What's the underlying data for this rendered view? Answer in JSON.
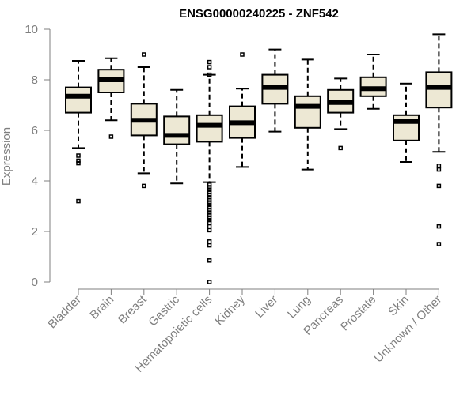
{
  "chart_data": {
    "type": "boxplot",
    "title": "ENSG00000240225 - ZNF542",
    "xlabel": "",
    "ylabel": "Expression",
    "ylim": [
      0,
      10
    ],
    "yticks": [
      0,
      2,
      4,
      6,
      8,
      10
    ],
    "categories": [
      "Bladder",
      "Brain",
      "Breast",
      "Gastric",
      "Hematopoietic cells",
      "Kidney",
      "Liver",
      "Lung",
      "Pancreas",
      "Prostate",
      "Skin",
      "Unknown / Other"
    ],
    "boxes": [
      {
        "category": "Bladder",
        "whisker_low": 5.3,
        "q1": 6.7,
        "median": 7.35,
        "q3": 7.7,
        "whisker_high": 8.75,
        "outliers": [
          5.0,
          4.8,
          4.7,
          3.2
        ]
      },
      {
        "category": "Brain",
        "whisker_low": 6.4,
        "q1": 7.5,
        "median": 8.0,
        "q3": 8.4,
        "whisker_high": 8.85,
        "outliers": [
          5.75
        ]
      },
      {
        "category": "Breast",
        "whisker_low": 4.3,
        "q1": 5.8,
        "median": 6.4,
        "q3": 7.05,
        "whisker_high": 8.5,
        "outliers": [
          9.0,
          3.8
        ]
      },
      {
        "category": "Gastric",
        "whisker_low": 3.9,
        "q1": 5.45,
        "median": 5.8,
        "q3": 6.55,
        "whisker_high": 7.6,
        "outliers": []
      },
      {
        "category": "Hematopoietic cells",
        "whisker_low": 3.95,
        "q1": 5.55,
        "median": 6.2,
        "q3": 6.6,
        "whisker_high": 8.2,
        "outliers": [
          8.7,
          8.5,
          8.2,
          3.85,
          3.75,
          3.65,
          3.55,
          3.45,
          3.35,
          3.25,
          3.15,
          3.05,
          2.95,
          2.85,
          2.75,
          2.65,
          2.55,
          2.45,
          2.35,
          2.2,
          2.05,
          1.6,
          1.45,
          0.85,
          0.0
        ]
      },
      {
        "category": "Kidney",
        "whisker_low": 4.55,
        "q1": 5.7,
        "median": 6.3,
        "q3": 6.95,
        "whisker_high": 7.65,
        "outliers": [
          9.0
        ]
      },
      {
        "category": "Liver",
        "whisker_low": 5.95,
        "q1": 7.05,
        "median": 7.7,
        "q3": 8.2,
        "whisker_high": 9.2,
        "outliers": []
      },
      {
        "category": "Lung",
        "whisker_low": 4.45,
        "q1": 6.1,
        "median": 6.95,
        "q3": 7.35,
        "whisker_high": 8.8,
        "outliers": []
      },
      {
        "category": "Pancreas",
        "whisker_low": 6.05,
        "q1": 6.7,
        "median": 7.1,
        "q3": 7.6,
        "whisker_high": 8.05,
        "outliers": [
          5.3
        ]
      },
      {
        "category": "Prostate",
        "whisker_low": 6.85,
        "q1": 7.35,
        "median": 7.65,
        "q3": 8.1,
        "whisker_high": 9.0,
        "outliers": []
      },
      {
        "category": "Skin",
        "whisker_low": 4.75,
        "q1": 5.6,
        "median": 6.35,
        "q3": 6.6,
        "whisker_high": 7.85,
        "outliers": []
      },
      {
        "category": "Unknown / Other",
        "whisker_low": 5.15,
        "q1": 6.9,
        "median": 7.7,
        "q3": 8.3,
        "whisker_high": 9.8,
        "outliers": [
          4.6,
          4.45,
          3.8,
          2.2,
          1.5
        ]
      }
    ],
    "colors": {
      "box_fill": "#ede8d4",
      "box_stroke": "#000000",
      "axis": "#7f7f7f"
    },
    "grid": false,
    "legend": "none"
  }
}
